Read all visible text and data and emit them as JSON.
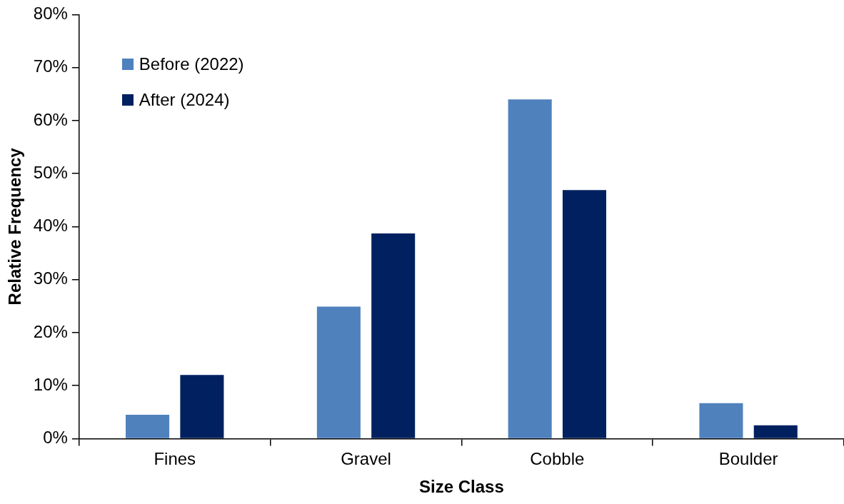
{
  "chart_data": {
    "type": "bar",
    "xlabel": "Size Class",
    "ylabel": "Relative Frequency",
    "categories": [
      "Fines",
      "Gravel",
      "Cobble",
      "Boulder"
    ],
    "series": [
      {
        "name": "Before (2022)",
        "color": "#4f81bd",
        "values": [
          4.5,
          24.9,
          64.0,
          6.7
        ]
      },
      {
        "name": "After (2024)",
        "color": "#002060",
        "values": [
          12.0,
          38.7,
          46.9,
          2.5
        ]
      }
    ],
    "ylim": [
      0,
      80
    ],
    "yticks": [
      {
        "value": 0,
        "label": "0%"
      },
      {
        "value": 10,
        "label": "10%"
      },
      {
        "value": 20,
        "label": "20%"
      },
      {
        "value": 30,
        "label": "30%"
      },
      {
        "value": 40,
        "label": "40%"
      },
      {
        "value": 50,
        "label": "50%"
      },
      {
        "value": 60,
        "label": "60%"
      },
      {
        "value": 70,
        "label": "70%"
      },
      {
        "value": 80,
        "label": "80%"
      }
    ],
    "grid": false,
    "legend": "top left"
  }
}
